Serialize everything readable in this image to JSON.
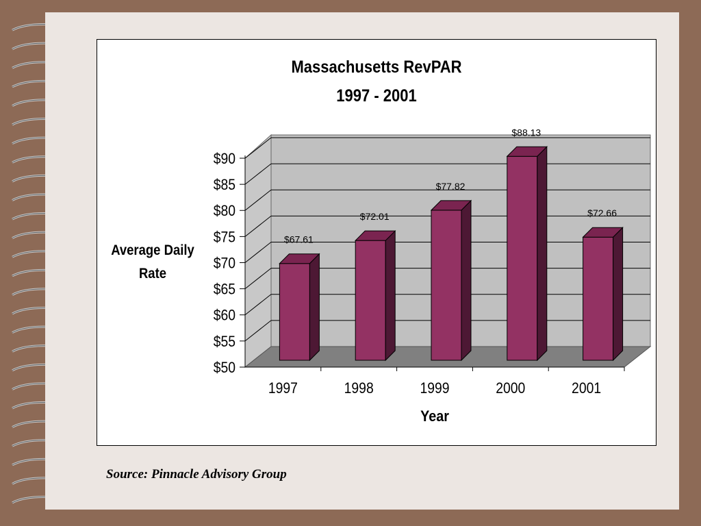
{
  "chart_data": {
    "type": "bar",
    "title": "Massachusetts RevPAR",
    "subtitle": "1997 - 2001",
    "xlabel": "Year",
    "ylabel": [
      "Average Daily",
      "Rate"
    ],
    "categories": [
      "1997",
      "1998",
      "1999",
      "2000",
      "2001"
    ],
    "values": [
      67.61,
      72.01,
      77.82,
      88.13,
      72.66
    ],
    "value_labels": [
      "$67.61",
      "$72.01",
      "$77.82",
      "$88.13",
      "$72.66"
    ],
    "y_ticks": [
      "$50",
      "$55",
      "$60",
      "$65",
      "$70",
      "$75",
      "$80",
      "$85",
      "$90"
    ],
    "ylim": [
      50,
      90
    ],
    "grid": true,
    "style": "3d",
    "colors": {
      "bar_front": "#933263",
      "bar_side": "#4d1834",
      "bar_top": "#7a2450",
      "back_wall": "#c0c0c0",
      "side_wall": "#c8c8c8",
      "floor": "#808080"
    }
  },
  "source": "Source: Pinnacle Advisory Group"
}
